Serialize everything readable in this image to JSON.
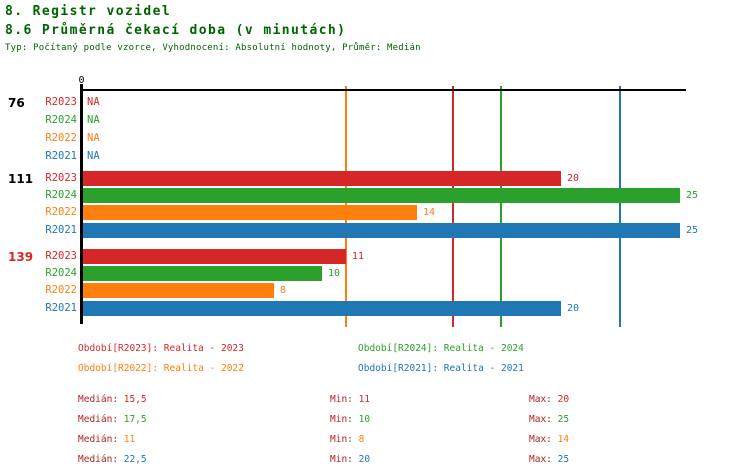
{
  "header": {
    "title": "8. Registr vozidel",
    "subtitle": "8.6 Průměrná čekací doba (v minutách)",
    "meta": "Typ: Počítaný podle vzorce, Vyhodnocení: Absolutní hodnoty, Průměr: Medián"
  },
  "colors": {
    "R2023": "#d62728",
    "R2024": "#2ca02c",
    "R2022": "#ff7f0e",
    "R2021": "#1f77b4",
    "heading": "#006400",
    "axis": "#000000",
    "stat_label": "#b22222",
    "group_label_normal": "#000000",
    "group_label_alert": "#d62728"
  },
  "chart_data": {
    "type": "bar",
    "orientation": "horizontal",
    "title": "8.6 Průměrná čekací doba (v minutách)",
    "x_axis": {
      "origin_label": "0",
      "min": 0,
      "max": 25.2,
      "grid": false
    },
    "series_order": [
      "R2023",
      "R2024",
      "R2022",
      "R2021"
    ],
    "groups": [
      {
        "label": "76",
        "alert": false,
        "bars": [
          {
            "series": "R2023",
            "value": null,
            "display": "NA"
          },
          {
            "series": "R2024",
            "value": null,
            "display": "NA"
          },
          {
            "series": "R2022",
            "value": null,
            "display": "NA"
          },
          {
            "series": "R2021",
            "value": null,
            "display": "NA"
          }
        ]
      },
      {
        "label": "111",
        "alert": false,
        "bars": [
          {
            "series": "R2023",
            "value": 20,
            "display": "20"
          },
          {
            "series": "R2024",
            "value": 25,
            "display": "25"
          },
          {
            "series": "R2022",
            "value": 14,
            "display": "14"
          },
          {
            "series": "R2021",
            "value": 25,
            "display": "25"
          }
        ]
      },
      {
        "label": "139",
        "alert": true,
        "bars": [
          {
            "series": "R2023",
            "value": 11,
            "display": "11"
          },
          {
            "series": "R2024",
            "value": 10,
            "display": "10"
          },
          {
            "series": "R2022",
            "value": 8,
            "display": "8"
          },
          {
            "series": "R2021",
            "value": 20,
            "display": "20"
          }
        ]
      }
    ],
    "median_lines": [
      {
        "series": "R2022",
        "value": 11
      },
      {
        "series": "R2023",
        "value": 15.5
      },
      {
        "series": "R2024",
        "value": 17.5
      },
      {
        "series": "R2021",
        "value": 22.5
      }
    ]
  },
  "legend": {
    "entries": [
      {
        "series": "R2023",
        "text": "Období[R2023]: Realita - 2023"
      },
      {
        "series": "R2024",
        "text": "Období[R2024]: Realita - 2024"
      },
      {
        "series": "R2022",
        "text": "Období[R2022]: Realita - 2022"
      },
      {
        "series": "R2021",
        "text": "Období[R2021]: Realita - 2021"
      }
    ]
  },
  "stats": {
    "labels": {
      "median": "Medián:",
      "min": "Min:",
      "max": "Max:"
    },
    "rows": [
      {
        "series": "R2023",
        "median": "15,5",
        "min": "11",
        "max": "20"
      },
      {
        "series": "R2024",
        "median": "17,5",
        "min": "10",
        "max": "25"
      },
      {
        "series": "R2022",
        "median": "11",
        "min": "8",
        "max": "14"
      },
      {
        "series": "R2021",
        "median": "22,5",
        "min": "20",
        "max": "25"
      }
    ]
  }
}
